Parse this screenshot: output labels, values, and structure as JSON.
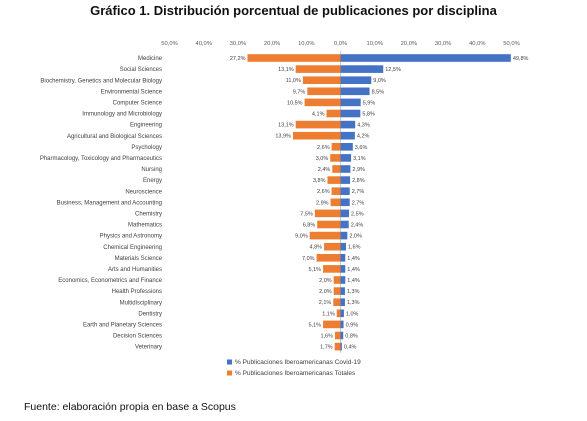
{
  "title": "Gráfico 1. Distribución porcentual de publicaciones por disciplina",
  "source": "Fuente: elaboración propia en base a Scopus",
  "colors": {
    "covid": "#4472C4",
    "totales": "#ED7D31"
  },
  "chart_data": {
    "type": "bar",
    "orientation": "horizontal-diverging",
    "xlim": [
      -50,
      50
    ],
    "x_ticks": [
      "50,0%",
      "40,0%",
      "30,0%",
      "20,0%",
      "10,0%",
      "0,0%",
      "10,0%",
      "20,0%",
      "30,0%",
      "40,0%",
      "50,0%"
    ],
    "grid": false,
    "legend_position": "bottom-right",
    "categories": [
      "Medicine",
      "Social Sciences",
      "Biochemistry, Genetics and Molecular Biology",
      "Environmental Science",
      "Computer Science",
      "Immunology and Microbiology",
      "Engineering",
      "Agricultural and Biological Sciences",
      "Psychology",
      "Pharmacology, Toxicology and Pharmaceutics",
      "Nursing",
      "Energy",
      "Neuroscience",
      "Business, Management and Accounting",
      "Chemistry",
      "Mathematics",
      "Physics and Astronomy",
      "Chemical Engineering",
      "Materials Science",
      "Arts and Humanities",
      "Economics, Econometrics and Finance",
      "Health Professions",
      "Multidisciplinary",
      "Dentistry",
      "Earth and Planetary Sciences",
      "Decision Sciences",
      "Veterinary"
    ],
    "series": [
      {
        "name": "% Publicaciones Iberoamericanas Covid-19",
        "side": "right",
        "values": [
          49.8,
          12.5,
          9.0,
          8.5,
          5.9,
          5.8,
          4.3,
          4.2,
          3.6,
          3.1,
          2.9,
          2.8,
          2.7,
          2.7,
          2.5,
          2.4,
          2.0,
          1.6,
          1.4,
          1.4,
          1.4,
          1.3,
          1.3,
          1.0,
          0.9,
          0.8,
          0.4
        ],
        "labels": [
          "49,8%",
          "12,5%",
          "9,0%",
          "8,5%",
          "5,9%",
          "5,8%",
          "4,3%",
          "4,2%",
          "3,6%",
          "3,1%",
          "2,9%",
          "2,8%",
          "2,7%",
          "2,7%",
          "2,5%",
          "2,4%",
          "2,0%",
          "1,6%",
          "1,4%",
          "1,4%",
          "1,4%",
          "1,3%",
          "1,3%",
          "1,0%",
          "0,9%",
          "0,8%",
          "0,4%"
        ]
      },
      {
        "name": "% Publicaciones Iberoamericanas Totales",
        "side": "left",
        "values": [
          27.2,
          13.1,
          11.0,
          9.7,
          10.5,
          4.1,
          13.1,
          13.9,
          2.6,
          3.0,
          2.4,
          3.8,
          2.6,
          2.9,
          7.5,
          6.8,
          9.0,
          4.8,
          7.0,
          5.1,
          2.0,
          2.0,
          2.1,
          1.1,
          5.1,
          1.6,
          1.7
        ],
        "labels": [
          "27,2%",
          "13,1%",
          "11,0%",
          "9,7%",
          "10,5%",
          "4,1%",
          "13,1%",
          "13,9%",
          "2,6%",
          "3,0%",
          "2,4%",
          "3,8%",
          "2,6%",
          "2,9%",
          "7,5%",
          "6,8%",
          "9,0%",
          "4,8%",
          "7,0%",
          "5,1%",
          "2,0%",
          "2,0%",
          "2,1%",
          "1,1%",
          "5,1%",
          "1,6%",
          "1,7%"
        ]
      }
    ]
  }
}
